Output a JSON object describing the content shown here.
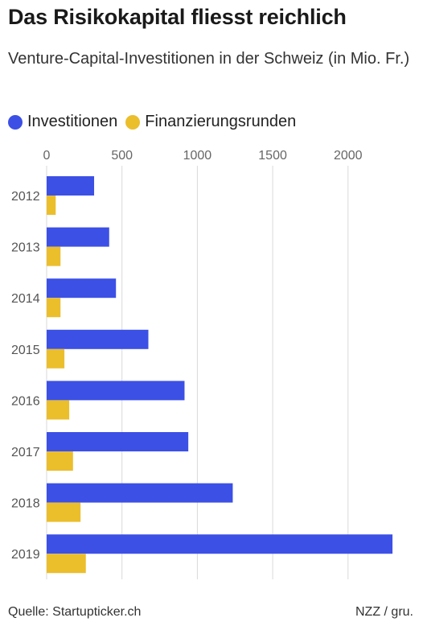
{
  "header": {
    "title": "Das Risikokapital fliesst reichlich",
    "subtitle": "Venture-Capital-Investitionen in der Schweiz (in Mio. Fr.)"
  },
  "footer": {
    "source": "Quelle: Startupticker.ch",
    "credit": "NZZ / gru."
  },
  "chart_data": {
    "type": "bar",
    "orientation": "horizontal",
    "categories": [
      "2012",
      "2013",
      "2014",
      "2015",
      "2016",
      "2017",
      "2018",
      "2019"
    ],
    "series": [
      {
        "name": "Investitionen",
        "color": "#3c50e6",
        "values": [
          315,
          415,
          460,
          675,
          915,
          940,
          1235,
          2295
        ]
      },
      {
        "name": "Finanzierungsrunden",
        "color": "#ebbe2c",
        "values": [
          60,
          92,
          92,
          118,
          150,
          175,
          225,
          260
        ]
      }
    ],
    "xticks": [
      0,
      500,
      1000,
      1500,
      2000
    ],
    "xlim": [
      0,
      2300
    ],
    "grid": true,
    "legend_position": "top-left"
  }
}
